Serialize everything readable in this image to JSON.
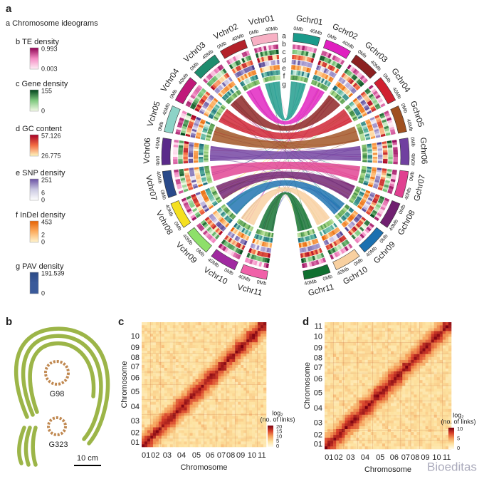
{
  "panel_labels": {
    "a": "a",
    "b": "b",
    "c": "c",
    "d": "d"
  },
  "legend": {
    "ideogram": "a Chromosome ideograms",
    "tracks": [
      {
        "title": "b TE density",
        "max": "0.993",
        "min": "0.003"
      },
      {
        "title": "c Gene density",
        "max": "155",
        "min": "0"
      },
      {
        "title": "d GC content",
        "max": "57.126",
        "min": "26.775"
      },
      {
        "title": "e SNP density",
        "max": "251",
        "mid": "6",
        "min": "0"
      },
      {
        "title": "f InDel density",
        "max": "453",
        "mid": "2",
        "min": "0"
      },
      {
        "title": "g PAV density",
        "max": "191.539",
        "min": "0"
      }
    ]
  },
  "circos": {
    "v_chromosomes": [
      "Vchr01",
      "Vchr02",
      "Vchr03",
      "Vchr04",
      "Vchr05",
      "Vchr06",
      "Vchr07",
      "Vchr08",
      "Vchr09",
      "Vchr10",
      "Vchr11"
    ],
    "g_chromosomes": [
      "Gchr01",
      "Gchr02",
      "Gchr03",
      "Gchr04",
      "Gchr05",
      "Gchr06",
      "Gchr07",
      "Gchr08",
      "Gchr09",
      "Gchr10",
      "Gchr11"
    ],
    "scale_start": "0Mb",
    "scale_end": "40Mb",
    "track_letters": [
      "a",
      "b",
      "c",
      "d",
      "e",
      "f",
      "g"
    ]
  },
  "pods": {
    "labels": [
      "G98",
      "G323"
    ],
    "scale_bar": "10 cm"
  },
  "heatmap_c": {
    "x_title": "Chromosome",
    "y_title": "Chromosome",
    "x_ticks": [
      "01",
      "02",
      "03",
      "04",
      "05",
      "06",
      "07",
      "08",
      "09",
      "10",
      "11"
    ],
    "y_ticks": [
      "01",
      "02",
      "03",
      "04",
      "05",
      "06",
      "07",
      "08",
      "09",
      "10"
    ],
    "colorbar_title": "log₂",
    "colorbar_subtitle": "(no. of links)",
    "colorbar_ticks": [
      "20",
      "15",
      "10",
      "5",
      "0"
    ]
  },
  "heatmap_d": {
    "x_title": "Chromosome",
    "y_title": "Chromosome",
    "x_ticks": [
      "01",
      "02",
      "03",
      "04",
      "05",
      "06",
      "07",
      "08",
      "09",
      "10",
      "11"
    ],
    "y_ticks": [
      "01",
      "02",
      "03",
      "04",
      "05",
      "06",
      "07",
      "08",
      "09",
      "10",
      "11"
    ],
    "colorbar_title": "log₂",
    "colorbar_subtitle": "(no. of links)",
    "colorbar_ticks": [
      "10",
      "5",
      "0"
    ]
  },
  "watermark": "Bioeditas"
}
